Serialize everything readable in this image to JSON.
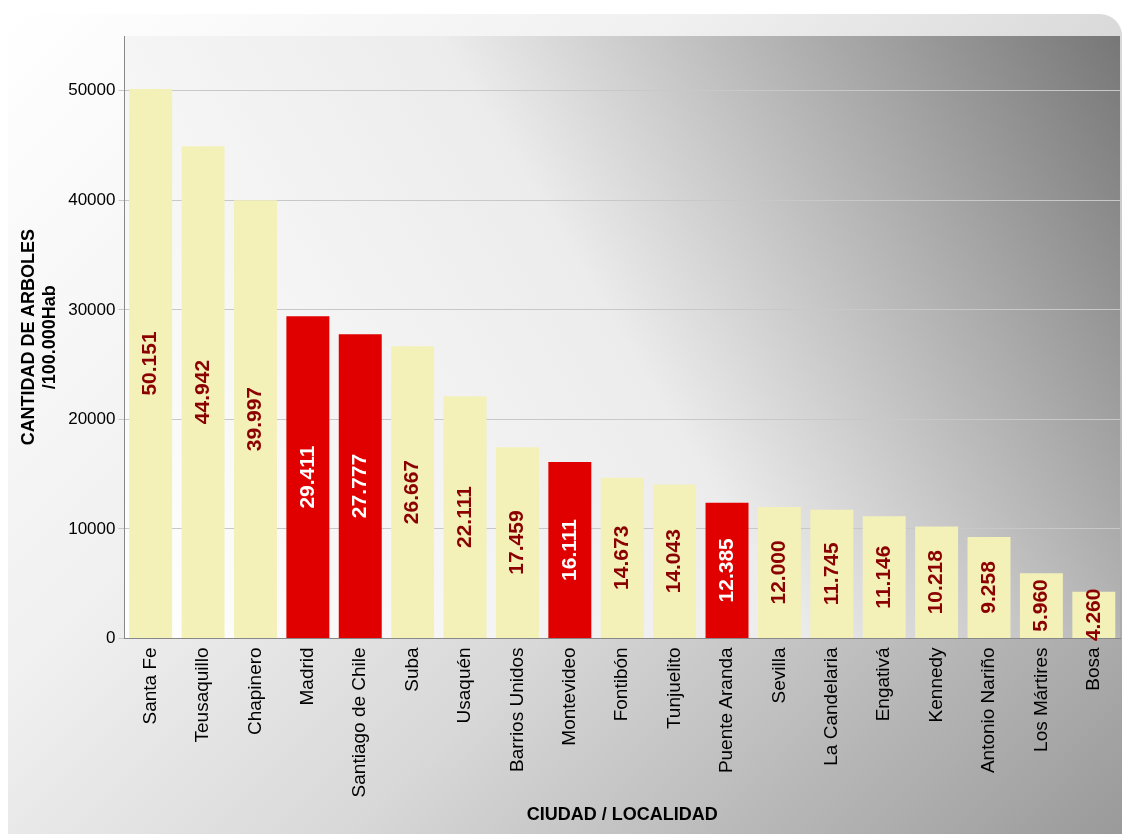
{
  "chart_data": {
    "type": "bar",
    "xlabel": "CIUDAD / LOCALIDAD",
    "ylabel": "CANTIDAD DE ARBOLES\n/100.000Hab",
    "categories": [
      "Santa Fe",
      "Teusaquillo",
      "Chapinero",
      "Madrid",
      "Santiago de Chile",
      "Suba",
      "Usaquén",
      "Barrios Unidos",
      "Montevideo",
      "Fontibón",
      "Tunjuelito",
      "Puente Aranda",
      "Sevilla",
      "La Candelaria",
      "Engativá",
      "Kennedy",
      "Antonio Nariño",
      "Los Mártires",
      "Bosa"
    ],
    "values": [
      50151,
      44942,
      39997,
      29411,
      27777,
      26667,
      22111,
      17459,
      16111,
      14673,
      14043,
      12385,
      12000,
      11745,
      11146,
      10218,
      9258,
      5960,
      4260
    ],
    "value_labels": [
      "50.151",
      "44.942",
      "39.997",
      "29.411",
      "27.777",
      "26.667",
      "22.111",
      "17.459",
      "16.111",
      "14.673",
      "14.043",
      "12.385",
      "12.000",
      "11.745",
      "11.146",
      "10.218",
      "9.258",
      "5.960",
      "4.260"
    ],
    "colors": [
      "#f3f0b8",
      "#f3f0b8",
      "#f3f0b8",
      "#e00000",
      "#e00000",
      "#f3f0b8",
      "#f3f0b8",
      "#f3f0b8",
      "#e00000",
      "#f3f0b8",
      "#f3f0b8",
      "#e00000",
      "#f3f0b8",
      "#f3f0b8",
      "#f3f0b8",
      "#f3f0b8",
      "#f3f0b8",
      "#f3f0b8",
      "#f3f0b8"
    ],
    "ylim": [
      0,
      55000
    ],
    "yticks": [
      0,
      10000,
      20000,
      30000,
      40000,
      50000
    ],
    "grid": "y",
    "legend": false
  }
}
